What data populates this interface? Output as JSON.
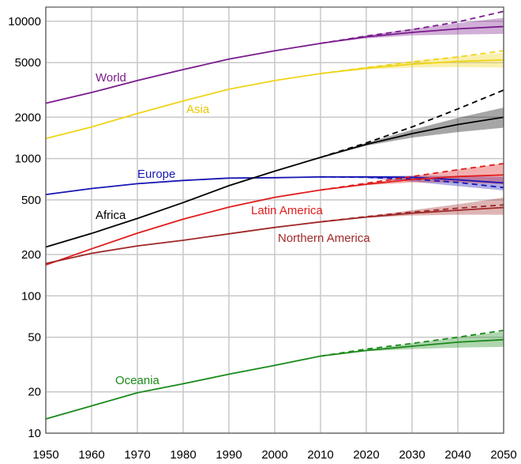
{
  "chart_data": {
    "type": "line",
    "title": "",
    "xlabel": "",
    "ylabel": "",
    "xlim": [
      1950,
      2050
    ],
    "ylim": [
      10,
      12000
    ],
    "yscale": "log",
    "grid": true,
    "legend": "inline labels",
    "x_ticks": [
      "1950",
      "1960",
      "1970",
      "1980",
      "1990",
      "2000",
      "2010",
      "2020",
      "2030",
      "2040",
      "2050"
    ],
    "y_ticks": [
      "10",
      "20",
      "50",
      "100",
      "200",
      "500",
      "1000",
      "2000",
      "5000",
      "10000"
    ],
    "x": [
      1950,
      1960,
      1970,
      1980,
      1990,
      2000,
      2010,
      2020,
      2030,
      2040,
      2050
    ],
    "projection_x": [
      2010,
      2020,
      2030,
      2040,
      2050
    ],
    "series": [
      {
        "name": "World",
        "color": "#7a1b8c",
        "values": [
          2530,
          3030,
          3700,
          4450,
          5300,
          6100,
          6900,
          7700,
          8300,
          8800,
          9150
        ],
        "dashed": [
          6900,
          7800,
          8700,
          9900,
          11800
        ],
        "low": [
          6900,
          7500,
          7900,
          8000,
          8100
        ],
        "high": [
          6900,
          7900,
          8800,
          9700,
          10600
        ]
      },
      {
        "name": "Asia",
        "color": "#f0d418",
        "values": [
          1400,
          1700,
          2130,
          2630,
          3200,
          3700,
          4160,
          4550,
          4870,
          5100,
          5230
        ],
        "dashed": [
          4160,
          4600,
          5050,
          5500,
          6100
        ],
        "low": [
          4160,
          4450,
          4600,
          4650,
          4600
        ],
        "high": [
          4160,
          4650,
          5150,
          5550,
          5900
        ]
      },
      {
        "name": "Europe",
        "color": "#1616b4",
        "values": [
          547,
          605,
          656,
          693,
          721,
          726,
          735,
          735,
          730,
          700,
          665
        ],
        "dashed": [
          735,
          730,
          710,
          670,
          615
        ],
        "low": [
          735,
          720,
          680,
          630,
          585
        ],
        "high": [
          735,
          745,
          750,
          745,
          735
        ]
      },
      {
        "name": "Africa",
        "color": "#000000",
        "values": [
          227,
          285,
          366,
          478,
          635,
          810,
          1020,
          1270,
          1520,
          1770,
          2000
        ],
        "dashed": [
          1020,
          1300,
          1700,
          2300,
          3150
        ],
        "low": [
          1020,
          1240,
          1420,
          1560,
          1680
        ],
        "high": [
          1020,
          1300,
          1620,
          1980,
          2350
        ]
      },
      {
        "name": "Latin America",
        "color": "#e01c1c",
        "values": [
          168,
          220,
          286,
          362,
          443,
          522,
          590,
          650,
          705,
          740,
          760
        ],
        "dashed": [
          590,
          660,
          740,
          830,
          920
        ],
        "low": [
          590,
          640,
          670,
          670,
          650
        ],
        "high": [
          590,
          660,
          740,
          830,
          920
        ]
      },
      {
        "name": "Northern America",
        "color": "#a02828",
        "values": [
          172,
          204,
          231,
          254,
          283,
          315,
          346,
          375,
          400,
          420,
          440
        ],
        "dashed": [
          346,
          378,
          408,
          435,
          460
        ],
        "low": [
          346,
          370,
          385,
          390,
          390
        ],
        "high": [
          346,
          380,
          420,
          465,
          520
        ]
      },
      {
        "name": "Oceania",
        "color": "#1a8a1a",
        "values": [
          12.7,
          15.8,
          19.7,
          22.9,
          26.9,
          31.2,
          36.4,
          40,
          43,
          46,
          48
        ],
        "dashed": [
          36.4,
          41,
          45,
          50,
          56
        ],
        "low": [
          36.4,
          39.5,
          41,
          42,
          42.5
        ],
        "high": [
          36.4,
          40.5,
          45,
          50,
          55
        ]
      }
    ]
  }
}
